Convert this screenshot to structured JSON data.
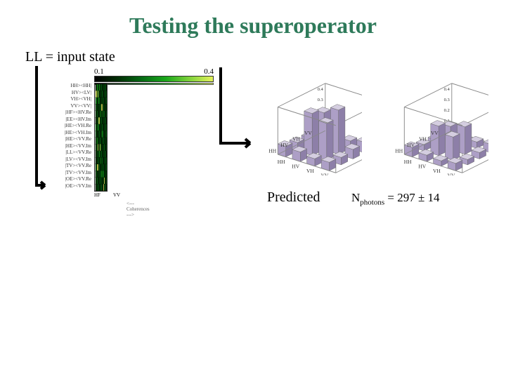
{
  "title": "Testing the superoperator",
  "subtitle": "LL = input state",
  "colorbar": {
    "min_label": "0.1",
    "max_label": "0.4",
    "bar_line": true
  },
  "heatmap": {
    "row_labels": [
      "HH><HH|",
      "HV><LV|",
      "VH><VH|",
      "VV><VV|",
      "|HF><HV.Re",
      "|EE><HV.Im",
      "|HE><VH.Re",
      "|HE><VH.Im",
      "|HE><VV.Re",
      "|HE><VV.Im",
      "|LL><VV.Re",
      "|LV><VV.Im",
      "|TV><VV.Re",
      "|TV><VV.Im",
      "|OE><VV.Re",
      "|OE><VV.Im"
    ],
    "x_ticks": [
      "HF",
      "VV"
    ],
    "x_caption": "<--- Coherences --->",
    "n_cols": 16,
    "n_rows": 16,
    "palette_dark": "#022f05",
    "palette_mid": "#1aa71a",
    "palette_bright": "#e3f25a",
    "cells_bright": [
      [
        1,
        0
      ],
      [
        1,
        1
      ],
      [
        1,
        3
      ],
      [
        3,
        8
      ],
      [
        3,
        9
      ],
      [
        5,
        4
      ],
      [
        5,
        5
      ],
      [
        9,
        3
      ],
      [
        9,
        6
      ],
      [
        12,
        2
      ],
      [
        12,
        3
      ],
      [
        14,
        12
      ],
      [
        15,
        11
      ]
    ],
    "cells_mid": [
      [
        0,
        2
      ],
      [
        0,
        5
      ],
      [
        2,
        1
      ],
      [
        2,
        4
      ],
      [
        4,
        7
      ],
      [
        4,
        10
      ],
      [
        6,
        0
      ],
      [
        6,
        3
      ],
      [
        7,
        9
      ],
      [
        8,
        2
      ],
      [
        10,
        5
      ],
      [
        11,
        7
      ],
      [
        13,
        8
      ],
      [
        13,
        10
      ]
    ]
  },
  "plots3d": {
    "axis_labels": [
      "HH",
      "HV",
      "VH",
      "VV"
    ],
    "z_ticks": [
      "0",
      "0.1",
      "0.2",
      "0.3",
      "0.4"
    ],
    "predicted": {
      "bars": [
        {
          "i": 0,
          "j": 0,
          "h": 0.1
        },
        {
          "i": 0,
          "j": 1,
          "h": 0.08
        },
        {
          "i": 0,
          "j": 2,
          "h": 0.07
        },
        {
          "i": 0,
          "j": 3,
          "h": 0.09
        },
        {
          "i": 1,
          "j": 0,
          "h": 0.09
        },
        {
          "i": 1,
          "j": 1,
          "h": 0.4
        },
        {
          "i": 1,
          "j": 2,
          "h": 0.35
        },
        {
          "i": 1,
          "j": 3,
          "h": 0.08
        },
        {
          "i": 2,
          "j": 0,
          "h": 0.07
        },
        {
          "i": 2,
          "j": 1,
          "h": 0.35
        },
        {
          "i": 2,
          "j": 2,
          "h": 0.42
        },
        {
          "i": 2,
          "j": 3,
          "h": 0.07
        },
        {
          "i": 3,
          "j": 0,
          "h": 0.08
        },
        {
          "i": 3,
          "j": 1,
          "h": 0.07
        },
        {
          "i": 3,
          "j": 2,
          "h": 0.09
        },
        {
          "i": 3,
          "j": 3,
          "h": 0.1
        }
      ]
    },
    "measured": {
      "bars": [
        {
          "i": 0,
          "j": 0,
          "h": 0.09
        },
        {
          "i": 0,
          "j": 1,
          "h": 0.06
        },
        {
          "i": 0,
          "j": 2,
          "h": 0.05
        },
        {
          "i": 0,
          "j": 3,
          "h": 0.08
        },
        {
          "i": 1,
          "j": 0,
          "h": 0.06
        },
        {
          "i": 1,
          "j": 1,
          "h": 0.28
        },
        {
          "i": 1,
          "j": 2,
          "h": 0.22
        },
        {
          "i": 1,
          "j": 3,
          "h": 0.07
        },
        {
          "i": 2,
          "j": 0,
          "h": 0.05
        },
        {
          "i": 2,
          "j": 1,
          "h": 0.22
        },
        {
          "i": 2,
          "j": 2,
          "h": 0.26
        },
        {
          "i": 2,
          "j": 3,
          "h": 0.06
        },
        {
          "i": 3,
          "j": 0,
          "h": 0.07
        },
        {
          "i": 3,
          "j": 1,
          "h": 0.05
        },
        {
          "i": 3,
          "j": 2,
          "h": 0.06
        },
        {
          "i": 3,
          "j": 3,
          "h": 0.08
        }
      ]
    }
  },
  "labels": {
    "predicted": "Predicted",
    "nphotons_prefix": "N",
    "nphotons_sub": "photons",
    "nphotons_value": " = 297 ± 14"
  },
  "colors": {
    "title": "#2e7a5a",
    "bar_top": "#d4cde0",
    "bar_front": "#ad9fc6",
    "bar_side": "#8d7fa8"
  }
}
